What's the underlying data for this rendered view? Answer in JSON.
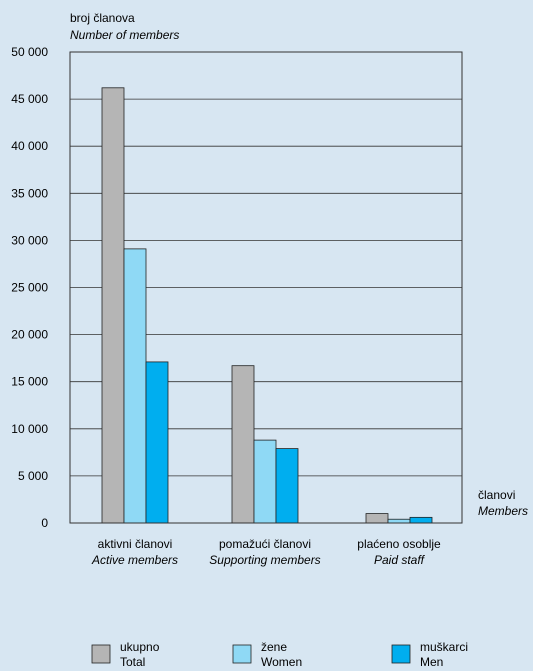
{
  "chart_data": {
    "type": "bar",
    "ylabel": "broj članova",
    "ylabel_en": "Number of members",
    "xlabel": "članovi",
    "xlabel_en": "Members",
    "ylim": [
      0,
      50000
    ],
    "yticks": [
      0,
      5000,
      10000,
      15000,
      20000,
      25000,
      30000,
      35000,
      40000,
      45000,
      50000
    ],
    "ytick_labels": [
      "0",
      "5 000",
      "10 000",
      "15 000",
      "20 000",
      "25 000",
      "30 000",
      "35 000",
      "40 000",
      "45 000",
      "50 000"
    ],
    "grid": true,
    "categories": [
      {
        "label": "aktivni članovi",
        "label_en": "Active members"
      },
      {
        "label": "pomažući članovi",
        "label_en": "Supporting members"
      },
      {
        "label": "plaćeno osoblje",
        "label_en": "Paid staff"
      }
    ],
    "series": [
      {
        "name": "ukupno",
        "name_en": "Total",
        "color": "#b5b5b5",
        "values": [
          46200,
          16700,
          1000
        ]
      },
      {
        "name": "žene",
        "name_en": "Women",
        "color": "#8fd9f5",
        "values": [
          29100,
          8800,
          400
        ]
      },
      {
        "name": "muškarci",
        "name_en": "Men",
        "color": "#00aeef",
        "values": [
          17100,
          7900,
          600
        ]
      }
    ]
  }
}
